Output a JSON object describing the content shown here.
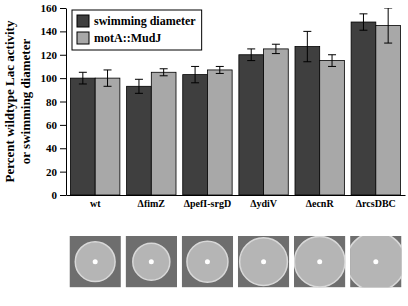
{
  "chart_data": {
    "type": "bar",
    "ylabel": "Percent wildtype Lac activity\nor swimming diameter",
    "categories": [
      "wt",
      "ΔfimZ",
      "ΔpefI-srgD",
      "ΔydiV",
      "ΔecnR",
      "ΔrcsDBC"
    ],
    "series": [
      {
        "name": "swimming diameter",
        "color": "#3f3f3f",
        "values": [
          100,
          93,
          103,
          120,
          127,
          148
        ],
        "errors": [
          5,
          6,
          7,
          5,
          13,
          7
        ]
      },
      {
        "name": "motA::MudJ",
        "color": "#a8a8a8",
        "values": [
          100,
          105,
          107,
          125,
          115,
          145
        ],
        "errors": [
          7,
          3,
          3,
          4,
          5,
          15
        ]
      }
    ],
    "ylim": [
      0,
      160
    ],
    "yticks": [
      0,
      20,
      40,
      60,
      80,
      100,
      120,
      140,
      160
    ],
    "grid": false,
    "legend": "upper left"
  }
}
